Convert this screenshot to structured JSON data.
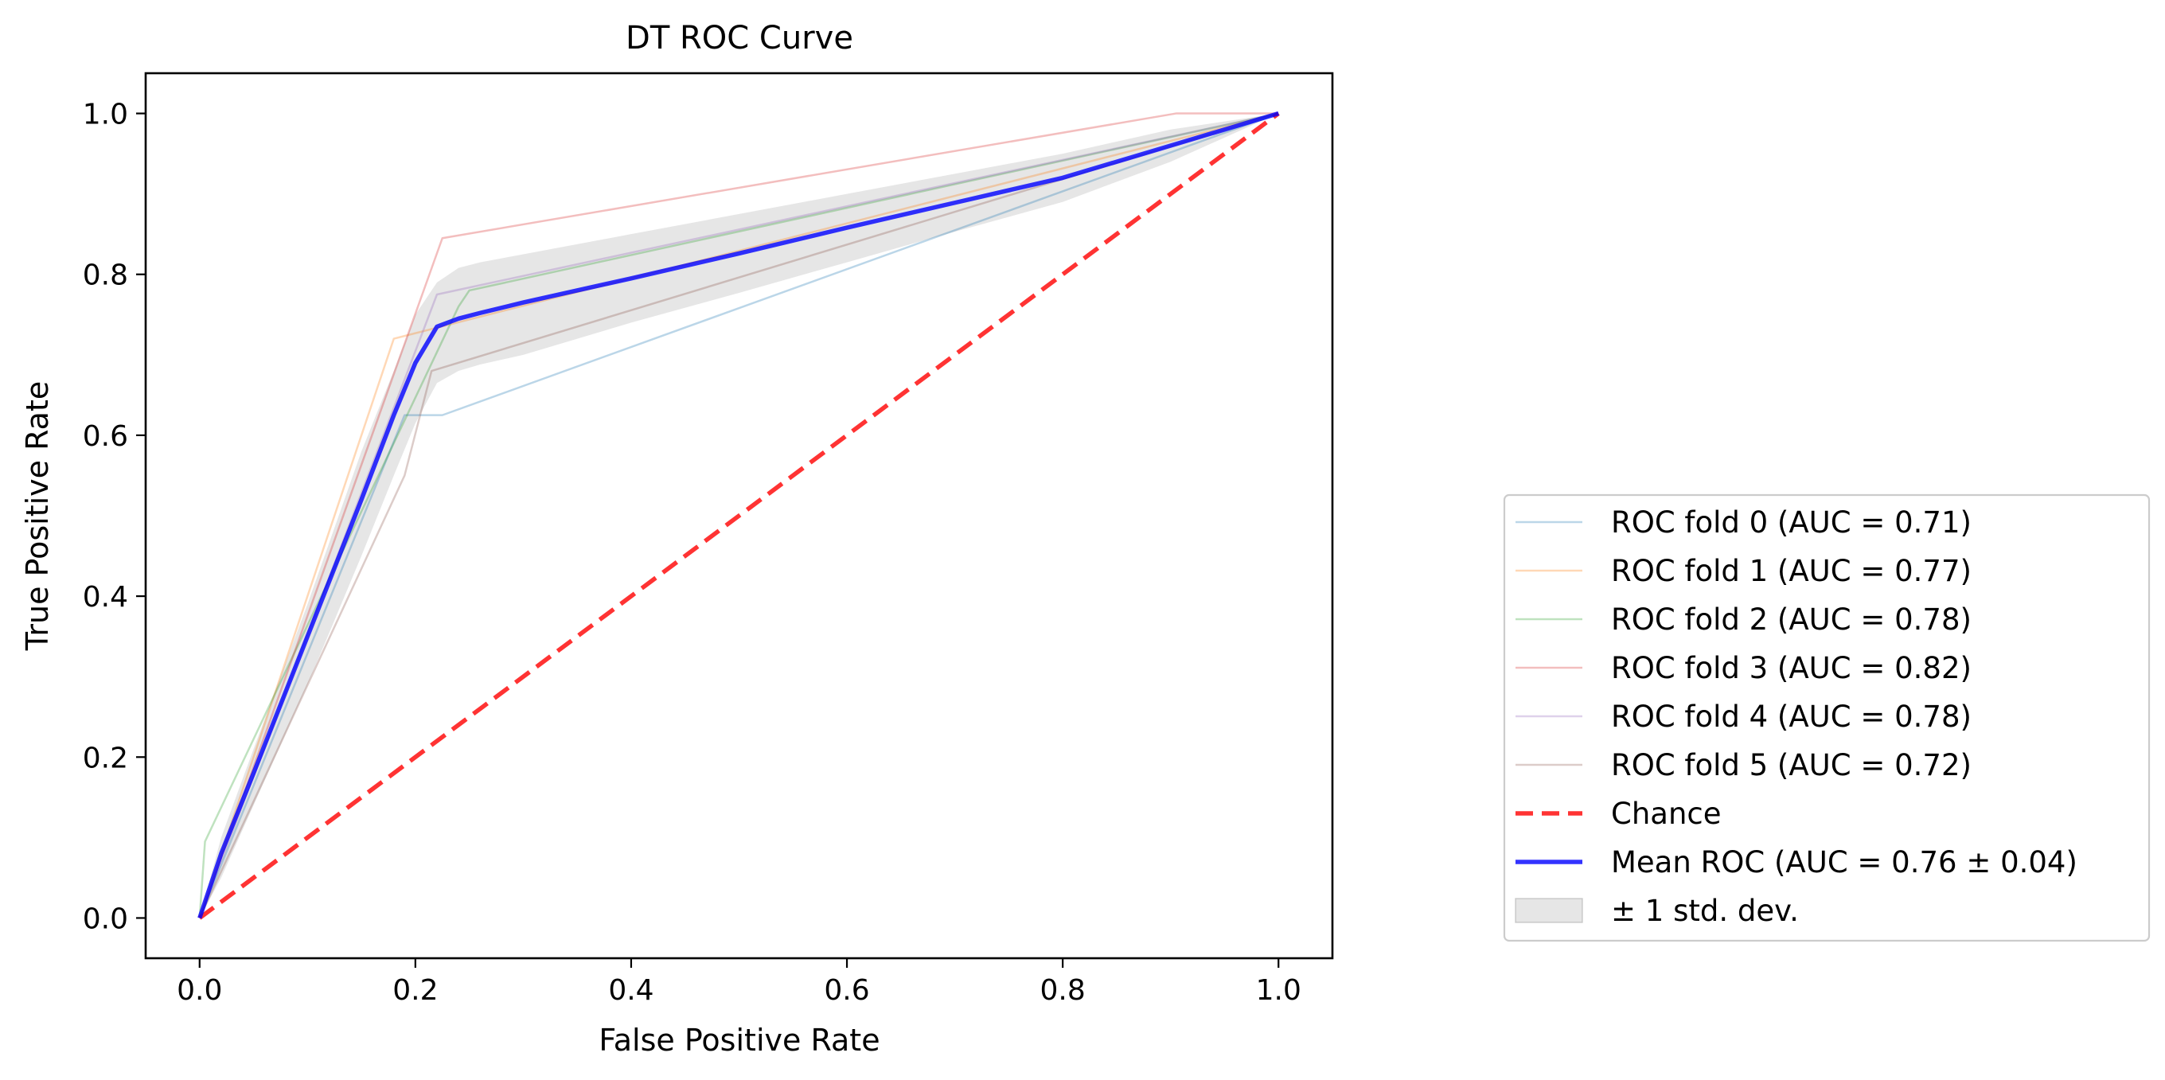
{
  "chart_data": {
    "type": "line",
    "title": "DT ROC Curve",
    "xlabel": "False Positive Rate",
    "ylabel": "True Positive Rate",
    "xlim": [
      -0.05,
      1.05
    ],
    "ylim": [
      -0.05,
      1.05
    ],
    "xticks": [
      0.0,
      0.2,
      0.4,
      0.6,
      0.8,
      1.0
    ],
    "xtick_labels": [
      "0.0",
      "0.2",
      "0.4",
      "0.6",
      "0.8",
      "1.0"
    ],
    "yticks": [
      0.0,
      0.2,
      0.4,
      0.6,
      0.8,
      1.0
    ],
    "ytick_labels": [
      "0.0",
      "0.2",
      "0.4",
      "0.6",
      "0.8",
      "1.0"
    ],
    "grid": false,
    "legend_position": "outside-right",
    "series": [
      {
        "name": "ROC fold 0 (AUC = 0.71)",
        "color": "#1f77b4",
        "opacity": 0.3,
        "width": 2.5,
        "dash": "",
        "x": [
          0.0,
          0.19,
          0.225,
          1.0
        ],
        "y": [
          0.0,
          0.625,
          0.625,
          1.0
        ]
      },
      {
        "name": "ROC fold 1 (AUC = 0.77)",
        "color": "#ff7f0e",
        "opacity": 0.3,
        "width": 2.5,
        "dash": "",
        "x": [
          0.0,
          0.18,
          1.0
        ],
        "y": [
          0.0,
          0.72,
          1.0
        ]
      },
      {
        "name": "ROC fold 2 (AUC = 0.78)",
        "color": "#2ca02c",
        "opacity": 0.3,
        "width": 2.5,
        "dash": "",
        "x": [
          0.0,
          0.005,
          0.24,
          0.25,
          1.0
        ],
        "y": [
          0.0,
          0.095,
          0.76,
          0.78,
          1.0
        ]
      },
      {
        "name": "ROC fold 3 (AUC = 0.82)",
        "color": "#d62728",
        "opacity": 0.3,
        "width": 2.5,
        "dash": "",
        "x": [
          0.0,
          0.225,
          0.905,
          1.0
        ],
        "y": [
          0.0,
          0.845,
          1.0,
          1.0
        ]
      },
      {
        "name": "ROC fold 4 (AUC = 0.78)",
        "color": "#9467bd",
        "opacity": 0.3,
        "width": 2.5,
        "dash": "",
        "x": [
          0.0,
          0.22,
          1.0
        ],
        "y": [
          0.0,
          0.775,
          1.0
        ]
      },
      {
        "name": "ROC fold 5 (AUC = 0.72)",
        "color": "#8c564b",
        "opacity": 0.3,
        "width": 2.5,
        "dash": "",
        "x": [
          0.0,
          0.19,
          0.215,
          1.0
        ],
        "y": [
          0.0,
          0.55,
          0.68,
          1.0
        ]
      },
      {
        "name": "Chance",
        "color": "#ff0000",
        "opacity": 0.8,
        "width": 5.5,
        "dash": "22,11",
        "x": [
          0.0,
          1.0
        ],
        "y": [
          0.0,
          1.0
        ]
      },
      {
        "name": "Mean ROC (AUC = 0.76 ± 0.04)",
        "color": "#0000ff",
        "opacity": 0.8,
        "width": 5.5,
        "dash": "",
        "x": [
          0.0,
          0.02,
          0.05,
          0.1,
          0.15,
          0.18,
          0.2,
          0.22,
          0.24,
          0.26,
          0.3,
          0.4,
          0.5,
          0.6,
          0.7,
          0.8,
          0.9,
          1.0
        ],
        "y": [
          0.0,
          0.08,
          0.18,
          0.35,
          0.52,
          0.625,
          0.69,
          0.735,
          0.745,
          0.752,
          0.765,
          0.795,
          0.826,
          0.858,
          0.889,
          0.92,
          0.96,
          1.0
        ]
      }
    ],
    "band": {
      "name": "± 1 std. dev.",
      "color": "#808080",
      "opacity": 0.2,
      "x": [
        0.0,
        0.02,
        0.05,
        0.1,
        0.15,
        0.18,
        0.2,
        0.22,
        0.24,
        0.26,
        0.3,
        0.4,
        0.5,
        0.6,
        0.7,
        0.8,
        0.9,
        1.0
      ],
      "upper": [
        0.0,
        0.1,
        0.21,
        0.39,
        0.58,
        0.68,
        0.75,
        0.79,
        0.808,
        0.815,
        0.825,
        0.85,
        0.875,
        0.9,
        0.925,
        0.95,
        0.98,
        1.0
      ],
      "lower": [
        0.0,
        0.05,
        0.14,
        0.29,
        0.45,
        0.55,
        0.615,
        0.665,
        0.68,
        0.688,
        0.7,
        0.74,
        0.777,
        0.815,
        0.853,
        0.89,
        0.94,
        1.0
      ]
    },
    "legend_order": [
      "ROC fold 0 (AUC = 0.71)",
      "ROC fold 1 (AUC = 0.77)",
      "ROC fold 2 (AUC = 0.78)",
      "ROC fold 3 (AUC = 0.82)",
      "ROC fold 4 (AUC = 0.78)",
      "ROC fold 5 (AUC = 0.72)",
      "Chance",
      "Mean ROC (AUC = 0.76 ± 0.04)",
      "± 1 std. dev."
    ]
  }
}
